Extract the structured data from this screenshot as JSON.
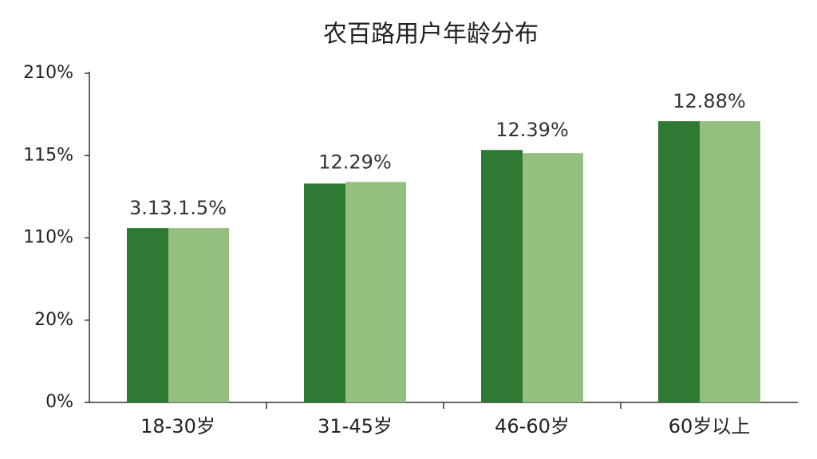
{
  "chart_data": {
    "type": "bar",
    "title": "农百路用户年龄分布",
    "categories": [
      "18-30岁",
      "31-45岁",
      "46-60岁",
      "60岁以上"
    ],
    "series": [
      {
        "color": "#2f7a33",
        "values": [
          110.6,
          113.3,
          121.5,
          154.7
        ]
      },
      {
        "color": "#93c07f",
        "values": [
          110.6,
          113.4,
          117.8,
          154.7
        ]
      }
    ],
    "annotations": [
      "3.13.1.5%",
      "12.29%",
      "12.39%",
      "12.88%"
    ],
    "ylim": [
      0,
      210
    ],
    "yticks": [
      {
        "value": 0,
        "label": "0%"
      },
      {
        "value": 20,
        "label": "20%"
      },
      {
        "value": 110,
        "label": "110%"
      },
      {
        "value": 115,
        "label": "115%"
      },
      {
        "value": 210,
        "label": "210%"
      }
    ],
    "grid": false
  }
}
